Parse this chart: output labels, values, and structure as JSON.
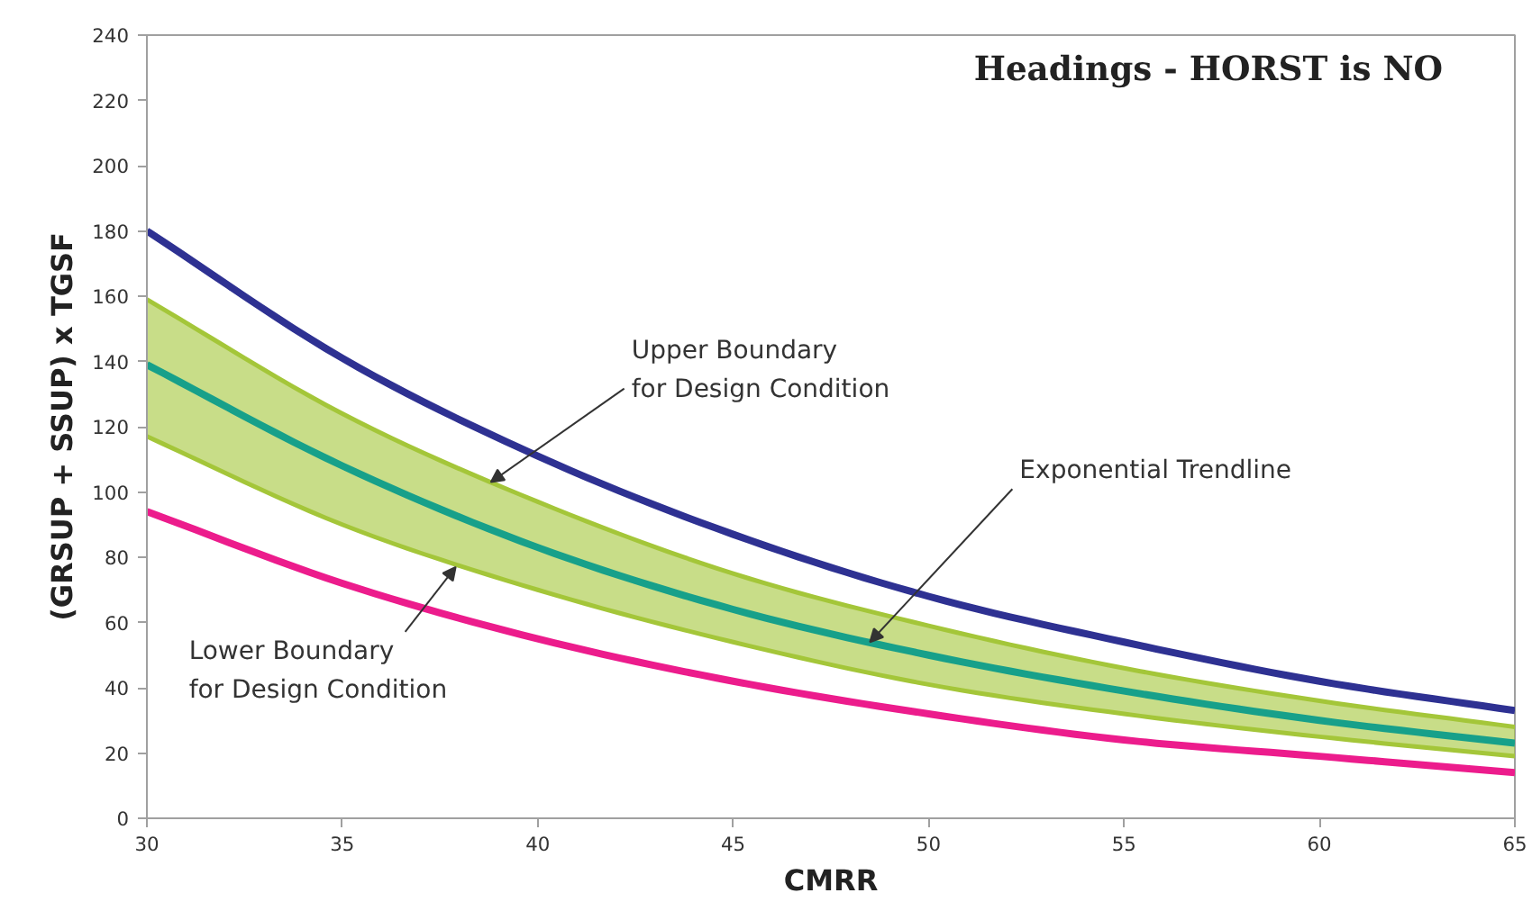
{
  "chart_data": {
    "type": "line",
    "title": "Headings - HORST is NO",
    "xlabel": "CMRR",
    "ylabel": "(GRSUP + SSUP) x TGSF",
    "x": [
      30,
      35,
      40,
      45,
      50,
      55,
      60,
      65
    ],
    "xlim": [
      30,
      65
    ],
    "xticks": [
      30,
      35,
      40,
      45,
      50,
      55,
      60,
      65
    ],
    "ylim": [
      0,
      240
    ],
    "yticks": [
      0,
      20,
      40,
      60,
      80,
      100,
      120,
      140,
      160,
      180,
      200,
      220,
      240
    ],
    "grid": false,
    "marker": "none",
    "line_style": "solid",
    "series": [
      {
        "color": "#2e3192",
        "values": [
          180,
          141,
          111,
          87,
          68,
          54,
          42,
          33
        ]
      },
      {
        "color": "#a4c639",
        "values": [
          159,
          124,
          97,
          75,
          59,
          46,
          36,
          28
        ],
        "lower": [
          117,
          90,
          70,
          54,
          41,
          32,
          25,
          19
        ],
        "upper": [
          159,
          124,
          97,
          75,
          59,
          46,
          36,
          28
        ]
      },
      {
        "color": "#a4c639",
        "values": [
          117,
          90,
          70,
          54,
          41,
          32,
          25,
          19
        ]
      },
      {
        "color": "#17a08a",
        "values": [
          139,
          108,
          83,
          64,
          50,
          39,
          30,
          23
        ]
      },
      {
        "color": "#ec1c8c",
        "values": [
          94,
          72,
          55,
          42,
          32,
          24,
          19,
          14
        ]
      }
    ],
    "annotations": [
      {
        "text": "Upper Boundary\nfor Design Condition",
        "x": 38.8,
        "y": 103
      },
      {
        "text": "Lower Boundary\nfor Design Condition",
        "x": 37.9,
        "y": 77
      },
      {
        "text": "Exponential  Trendline",
        "x": 48.5,
        "y": 54
      }
    ]
  }
}
